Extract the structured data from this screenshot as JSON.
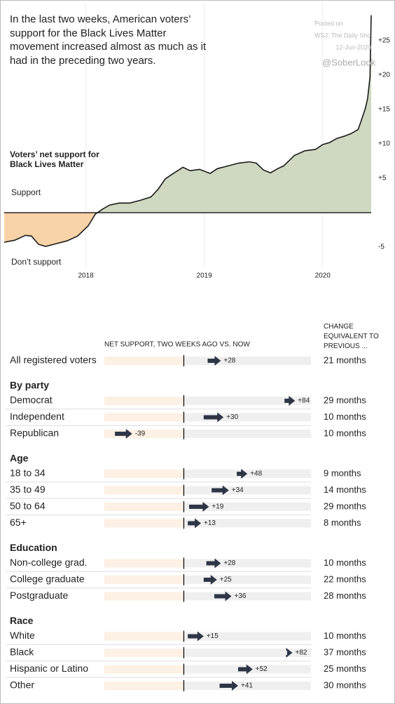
{
  "chart_data": [
    {
      "type": "area",
      "title": "In the last two weeks, American voters’ support for the Black Lives Matter movement increased almost as much as it had in the preceding two years.",
      "annotations": [
        "Voters’ net support for Black Lives Matter",
        "Support",
        "Don’t support"
      ],
      "source_note": [
        "Posted on",
        "WSJ: The Daily Shot",
        "12-Jun-2020"
      ],
      "watermark": "@SoberLook",
      "x": [
        2017.31,
        2017.4,
        2017.49,
        2017.54,
        2017.6,
        2017.66,
        2017.75,
        2017.84,
        2017.93,
        2018.02,
        2018.08,
        2018.14,
        2018.2,
        2018.28,
        2018.37,
        2018.46,
        2018.55,
        2018.61,
        2018.67,
        2018.73,
        2018.82,
        2018.88,
        2018.96,
        2019.05,
        2019.11,
        2019.2,
        2019.29,
        2019.38,
        2019.44,
        2019.5,
        2019.56,
        2019.62,
        2019.67,
        2019.76,
        2019.85,
        2019.94,
        2020.0,
        2020.06,
        2020.12,
        2020.18,
        2020.24,
        2020.3,
        2020.33,
        2020.36,
        2020.38,
        2020.4,
        2020.41
      ],
      "values": [
        -4.3,
        -4.0,
        -3.3,
        -3.4,
        -4.6,
        -4.9,
        -4.5,
        -4.1,
        -3.4,
        -1.9,
        -0.2,
        0.5,
        1.1,
        1.4,
        1.4,
        1.8,
        2.3,
        3.4,
        4.9,
        5.6,
        6.6,
        6.1,
        6.3,
        5.7,
        6.4,
        6.8,
        7.2,
        7.4,
        7.2,
        6.2,
        5.8,
        6.4,
        6.8,
        8.3,
        9.0,
        9.2,
        9.9,
        10.2,
        10.8,
        11.1,
        11.5,
        12.1,
        13.6,
        15.1,
        16.6,
        19.7,
        28.7
      ],
      "xlim": [
        2017.31,
        2020.41
      ],
      "xticks": [
        2018,
        2019,
        2020
      ],
      "ylim": [
        -8,
        30
      ],
      "yticks": [
        {
          "value": 25,
          "label": "+25"
        },
        {
          "value": 20,
          "label": "+20"
        },
        {
          "value": 15,
          "label": "+15"
        },
        {
          "value": 10,
          "label": "+10"
        },
        {
          "value": 5,
          "label": "+5"
        },
        -5
      ],
      "grid": true,
      "positive_color": "#cfd8c0",
      "negative_color": "#f8d3a8",
      "line_color": "#1a1a1a"
    },
    {
      "type": "arrow",
      "header": "NET SUPPORT, TWO WEEKS AGO VS. NOW",
      "change_header": "CHANGE EQUIVALENT TO PREVIOUS ...",
      "xlim": [
        -60,
        96
      ],
      "arrow_color": "#2e3646",
      "negative_color": "#fdf0e4",
      "positive_color": "#efefef",
      "groups": [
        {
          "categories": [
            "All registered voters"
          ],
          "start": [
            18
          ],
          "values": [
            28
          ],
          "value_labels": [
            "+28"
          ],
          "months": [
            "21 months"
          ]
        },
        {
          "title": "By party",
          "categories": [
            "Democrat",
            "Independent",
            "Republican"
          ],
          "start": [
            76,
            15,
            -52
          ],
          "values": [
            84,
            30,
            -39
          ],
          "value_labels": [
            "+84",
            "+30",
            "-39"
          ],
          "months": [
            "29 months",
            "10 months",
            "10 months"
          ]
        },
        {
          "title": "Age",
          "categories": [
            "18 to 34",
            "35 to 49",
            "50 to 64",
            "65+"
          ],
          "start": [
            40,
            21,
            4,
            3
          ],
          "values": [
            48,
            34,
            19,
            13
          ],
          "value_labels": [
            "+48",
            "+34",
            "+19",
            "+13"
          ],
          "months": [
            "9 months",
            "14 months",
            "29 months",
            "8 months"
          ]
        },
        {
          "title": "Education",
          "categories": [
            "Non-college grad.",
            "College graduate",
            "Postgraduate"
          ],
          "start": [
            17,
            15,
            23
          ],
          "values": [
            28,
            25,
            36
          ],
          "value_labels": [
            "+28",
            "+25",
            "+36"
          ],
          "months": [
            "10 months",
            "22 months",
            "28 months"
          ]
        },
        {
          "title": "Race",
          "categories": [
            "White",
            "Black",
            "Hispanic or Latino",
            "Other"
          ],
          "start": [
            3,
            78,
            41,
            27
          ],
          "values": [
            15,
            82,
            52,
            41
          ],
          "value_labels": [
            "+15",
            "+82",
            "+52",
            "+41"
          ],
          "months": [
            "10 months",
            "37 months",
            "25 months",
            "30 months"
          ]
        }
      ]
    }
  ]
}
